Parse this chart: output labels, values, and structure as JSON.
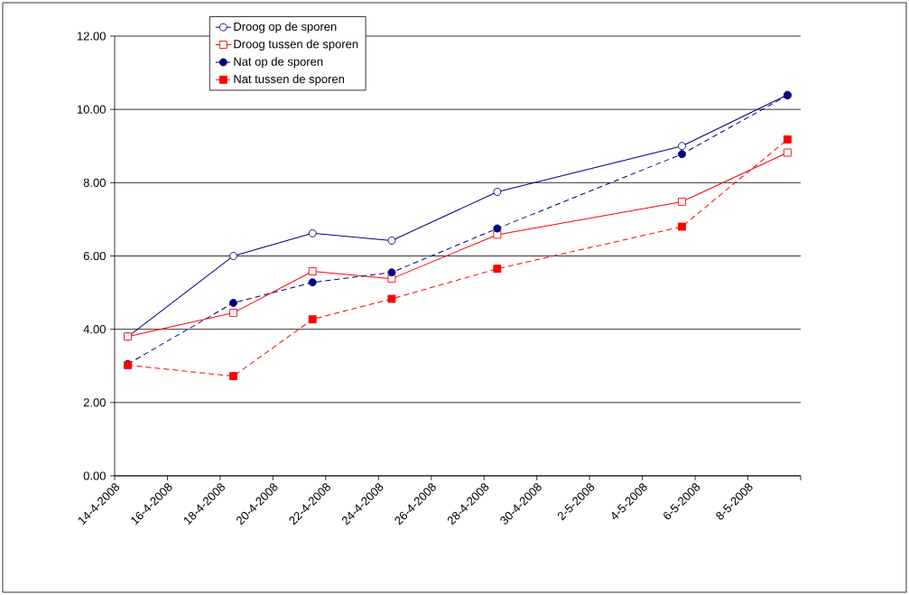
{
  "chart_data": {
    "type": "line",
    "xlim": [
      "2008-04-14",
      "2008-05-10"
    ],
    "xticks": [
      {
        "value": "2008-04-14",
        "label": "14-4-2008"
      },
      {
        "value": "2008-04-16",
        "label": "16-4-2008"
      },
      {
        "value": "2008-04-18",
        "label": "18-4-2008"
      },
      {
        "value": "2008-04-20",
        "label": "20-4-2008"
      },
      {
        "value": "2008-04-22",
        "label": "22-4-2008"
      },
      {
        "value": "2008-04-24",
        "label": "24-4-2008"
      },
      {
        "value": "2008-04-26",
        "label": "26-4-2008"
      },
      {
        "value": "2008-04-28",
        "label": "28-4-2008"
      },
      {
        "value": "2008-04-30",
        "label": "30-4-2008"
      },
      {
        "value": "2008-05-02",
        "label": "2-5-2008"
      },
      {
        "value": "2008-05-04",
        "label": "4-5-2008"
      },
      {
        "value": "2008-05-06",
        "label": "6-5-2008"
      },
      {
        "value": "2008-05-08",
        "label": "8-5-2008"
      },
      {
        "value": "2008-05-10",
        "label": null
      }
    ],
    "ylim": [
      0,
      12
    ],
    "yticks": [
      {
        "value": 0,
        "label": "0.00"
      },
      {
        "value": 2,
        "label": "2.00"
      },
      {
        "value": 4,
        "label": "4.00"
      },
      {
        "value": 6,
        "label": "6.00"
      },
      {
        "value": 8,
        "label": "8.00"
      },
      {
        "value": 10,
        "label": "10.00"
      },
      {
        "value": 12,
        "label": "12.00"
      }
    ],
    "grid": "y",
    "legend": "top left",
    "x": [
      "2008-04-14T12:00",
      "2008-04-18T12:00",
      "2008-04-21T12:00",
      "2008-04-24T12:00",
      "2008-04-28T12:00",
      "2008-05-05T12:00",
      "2008-05-09T12:00"
    ],
    "series": [
      {
        "name": "Droog op de sporen",
        "color": "#000080",
        "marker": "circle",
        "line_style": "solid",
        "values": [
          3.8,
          6.0,
          6.62,
          6.42,
          7.75,
          9.0,
          10.4
        ]
      },
      {
        "name": "Droog tussen de sporen",
        "color": "#ff0000",
        "marker": "square",
        "line_style": "solid",
        "values": [
          3.8,
          4.45,
          5.58,
          5.38,
          6.58,
          7.48,
          8.82
        ]
      },
      {
        "name": "Nat op de sporen",
        "color": "#000080",
        "marker": "circle",
        "line_style": "dashed",
        "values": [
          3.05,
          4.72,
          5.28,
          5.55,
          6.75,
          8.78,
          10.38
        ]
      },
      {
        "name": "Nat tussen de sporen",
        "color": "#ff0000",
        "marker": "square",
        "line_style": "dashed",
        "values": [
          3.02,
          2.72,
          4.27,
          4.83,
          5.65,
          6.8,
          9.18
        ]
      }
    ]
  }
}
